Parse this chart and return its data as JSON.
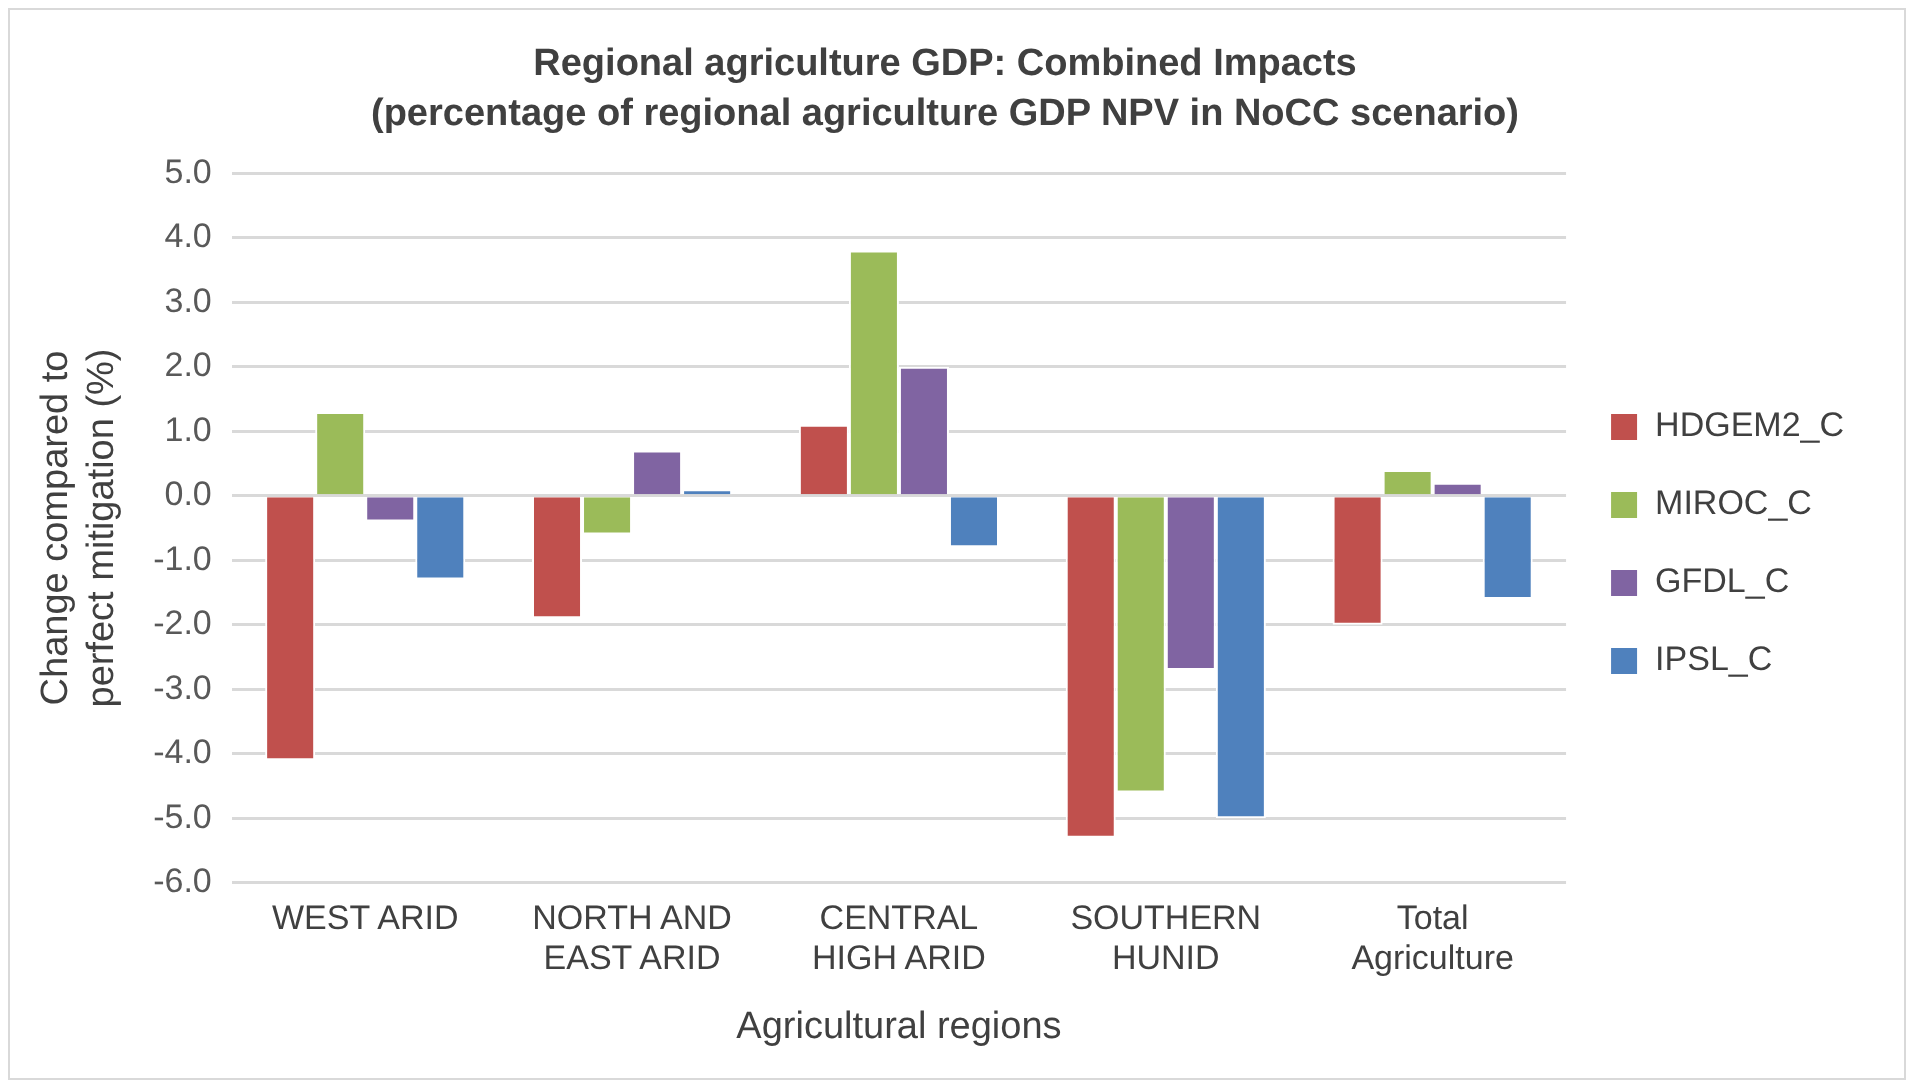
{
  "chart_data": {
    "type": "bar",
    "title": "Regional agriculture GDP: Combined Impacts",
    "subtitle": "(percentage of regional agriculture GDP NPV in NoCC scenario)",
    "xlabel": "Agricultural regions",
    "ylabel": "Change compared to perfect mitigation (%)",
    "categories": [
      "WEST ARID",
      "NORTH AND EAST ARID",
      "CENTRAL HIGH ARID",
      "SOUTHERN HUNID",
      "Total Agriculture"
    ],
    "series": [
      {
        "name": "HDGEM2_C",
        "color": "#c0504d",
        "values": [
          -4.1,
          -1.9,
          1.1,
          -5.3,
          -2.0
        ]
      },
      {
        "name": "MIROC_C",
        "color": "#9bbb59",
        "values": [
          1.3,
          -0.6,
          3.8,
          -4.6,
          0.4
        ]
      },
      {
        "name": "GFDL_C",
        "color": "#8064a2",
        "values": [
          -0.4,
          0.7,
          2.0,
          -2.7,
          0.2
        ]
      },
      {
        "name": "IPSL_C",
        "color": "#4f81bd",
        "values": [
          -1.3,
          0.1,
          -0.8,
          -5.0,
          -1.6
        ]
      }
    ],
    "ylim": [
      -6,
      5
    ],
    "yticks": [
      {
        "value": 5,
        "label": "5.0"
      },
      {
        "value": 4,
        "label": "4.0"
      },
      {
        "value": 3,
        "label": "3.0"
      },
      {
        "value": 2,
        "label": "2.0"
      },
      {
        "value": 1,
        "label": "1.0"
      },
      {
        "value": 0,
        "label": "0.0"
      },
      {
        "value": -1,
        "label": "-1.0"
      },
      {
        "value": -2,
        "label": "-2.0"
      },
      {
        "value": -3,
        "label": "-3.0"
      },
      {
        "value": -4,
        "label": "-4.0"
      },
      {
        "value": -5,
        "label": "-5.0"
      },
      {
        "value": -6,
        "label": "-6.0"
      }
    ],
    "grid": "y",
    "legend": "right"
  }
}
